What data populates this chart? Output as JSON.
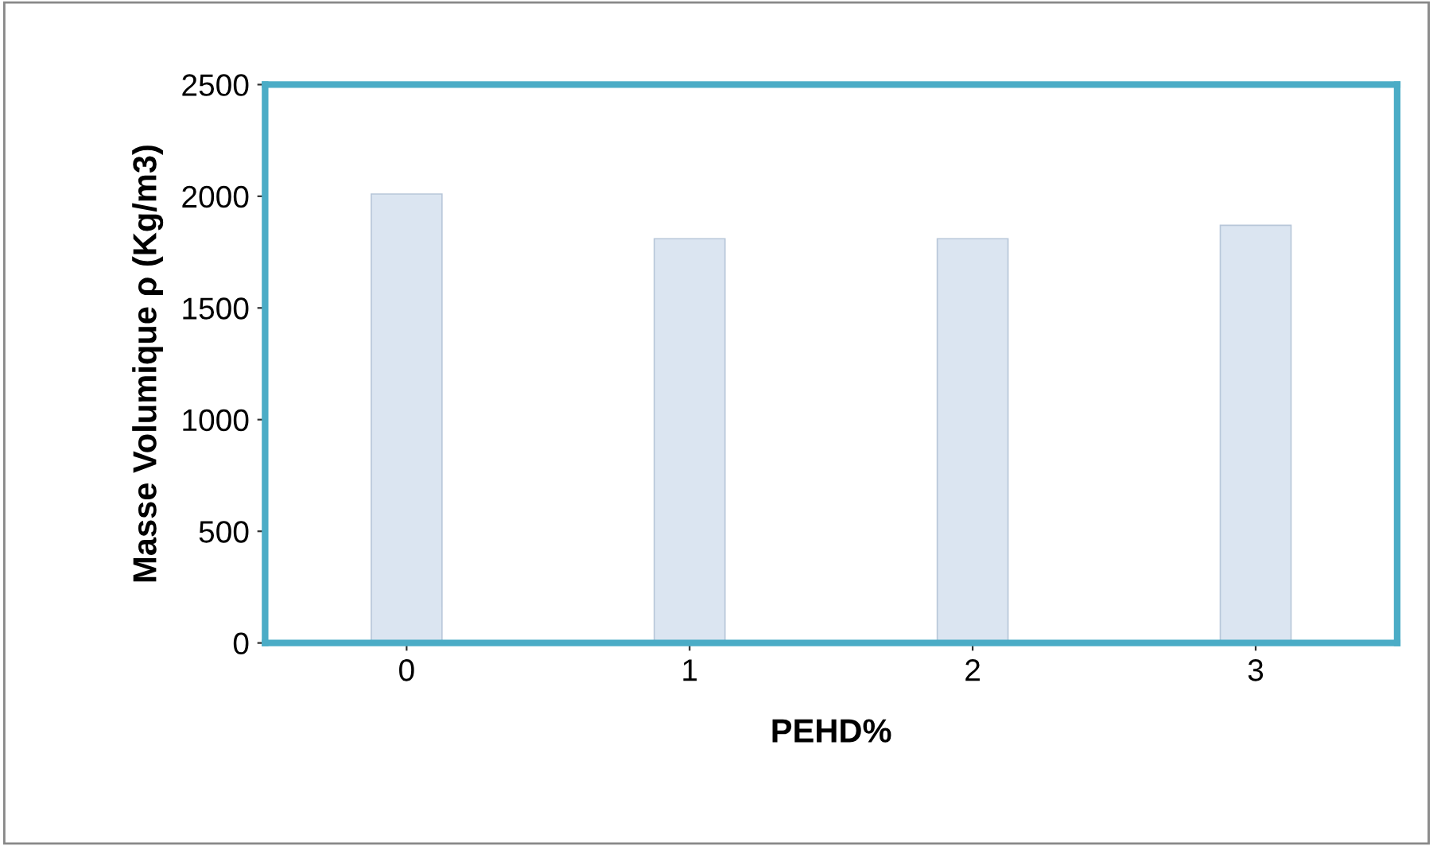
{
  "chart_data": {
    "type": "bar",
    "xlabel": "PEHD%",
    "ylabel": "Masse Volumique ρ (Kg/m3)",
    "categories": [
      "0",
      "1",
      "2",
      "3"
    ],
    "values": [
      2010,
      1810,
      1810,
      1870
    ],
    "color": "#dbe5f1",
    "ylim": [
      0,
      2500
    ],
    "yticks": [
      0,
      500,
      1000,
      1500,
      2000,
      2500
    ],
    "grid": false,
    "legend": false
  }
}
